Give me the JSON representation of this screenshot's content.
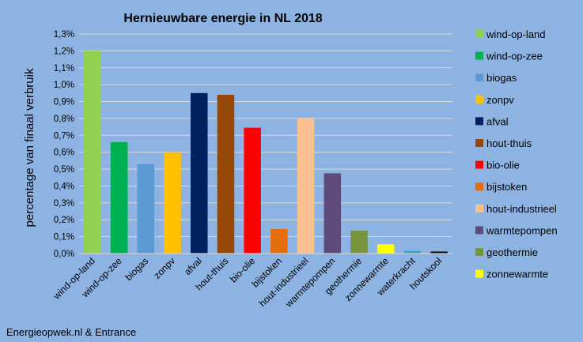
{
  "chart_data": {
    "type": "bar",
    "title": "Hernieuwbare energie in NL 2018",
    "xlabel": "",
    "ylabel": "percentage van finaal verbruik",
    "ylim": [
      0,
      1.3
    ],
    "y_tick_step": 0.1,
    "y_tick_labels": [
      "0,0%",
      "0,1%",
      "0,2%",
      "0,3%",
      "0,4%",
      "0,5%",
      "0,6%",
      "0,7%",
      "0,8%",
      "0,9%",
      "1,0%",
      "1,1%",
      "1,2%",
      "1,3%"
    ],
    "grid": true,
    "legend_position": "right",
    "categories": [
      "wind-op-land",
      "wind-op-zee",
      "biogas",
      "zonpv",
      "afval",
      "hout-thuis",
      "bio-olie",
      "bijstoken",
      "hout-industrieel",
      "warmtepompen",
      "geothermie",
      "zonnewarmte",
      "waterkracht",
      "houtskool"
    ],
    "values": [
      1.2,
      0.66,
      0.53,
      0.6,
      0.95,
      0.94,
      0.745,
      0.145,
      0.805,
      0.475,
      0.135,
      0.055,
      0.015,
      0.012
    ],
    "colors": [
      "#92d050",
      "#00b050",
      "#5b9bd5",
      "#ffc000",
      "#002060",
      "#974706",
      "#ff0000",
      "#e46c0a",
      "#fac090",
      "#604a7b",
      "#77933c",
      "#ffff00",
      "#31a5c9",
      "#0d0d0d"
    ],
    "legend": [
      "wind-op-land",
      "wind-op-zee",
      "biogas",
      "zonpv",
      "afval",
      "hout-thuis",
      "bio-olie",
      "bijstoken",
      "hout-industrieel",
      "warmtepompen",
      "geothermie",
      "zonnewarmte"
    ]
  },
  "source": "Energieopwek.nl & Entrance"
}
